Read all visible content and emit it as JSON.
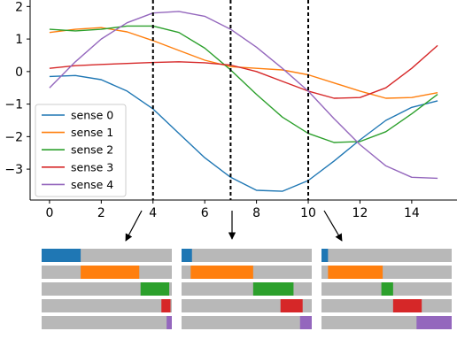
{
  "chart_data": {
    "type": "line",
    "xlim": [
      -0.75,
      15.75
    ],
    "ylim": [
      -3.95,
      2.2
    ],
    "x_ticks": [
      0,
      2,
      4,
      6,
      8,
      10,
      12,
      14
    ],
    "y_ticks": [
      2,
      1,
      0,
      -1,
      -2,
      -3
    ],
    "x_tick_labels": [
      "0",
      "2",
      "4",
      "6",
      "8",
      "10",
      "12",
      "14"
    ],
    "y_tick_labels": [
      "2",
      "1",
      "0",
      "−1",
      "−2",
      "−3"
    ],
    "x": [
      0,
      1,
      2,
      3,
      4,
      5,
      6,
      7,
      8,
      9,
      10,
      11,
      12,
      13,
      14,
      15
    ],
    "series": [
      {
        "name": "sense 0",
        "color": "#1f77b4",
        "values": [
          -0.15,
          -0.12,
          -0.25,
          -0.6,
          -1.15,
          -1.9,
          -2.65,
          -3.25,
          -3.65,
          -3.68,
          -3.35,
          -2.75,
          -2.1,
          -1.5,
          -1.1,
          -0.9
        ]
      },
      {
        "name": "sense 1",
        "color": "#ff7f0e",
        "values": [
          1.2,
          1.3,
          1.35,
          1.22,
          0.95,
          0.65,
          0.35,
          0.15,
          0.1,
          0.05,
          -0.1,
          -0.35,
          -0.6,
          -0.82,
          -0.8,
          -0.65
        ]
      },
      {
        "name": "sense 2",
        "color": "#2ca02c",
        "values": [
          1.3,
          1.25,
          1.3,
          1.4,
          1.4,
          1.2,
          0.72,
          0.05,
          -0.7,
          -1.4,
          -1.9,
          -2.18,
          -2.15,
          -1.85,
          -1.3,
          -0.7
        ]
      },
      {
        "name": "sense 3",
        "color": "#d62728",
        "values": [
          0.1,
          0.18,
          0.22,
          0.25,
          0.28,
          0.3,
          0.27,
          0.2,
          0.0,
          -0.3,
          -0.6,
          -0.82,
          -0.8,
          -0.5,
          0.1,
          0.8
        ]
      },
      {
        "name": "sense 4",
        "color": "#9467bd",
        "values": [
          -0.5,
          0.3,
          1.0,
          1.5,
          1.8,
          1.85,
          1.7,
          1.3,
          0.75,
          0.1,
          -0.6,
          -1.45,
          -2.25,
          -2.9,
          -3.25,
          -3.28
        ]
      }
    ],
    "markers_at_x": [
      4,
      7,
      10
    ],
    "legend": "lower-left",
    "grid": false,
    "sense_weights": [
      {
        "x": 4,
        "fractions": [
          0.3,
          0.45,
          0.22,
          0.07,
          0.04
        ]
      },
      {
        "x": 7,
        "fractions": [
          0.08,
          0.48,
          0.31,
          0.17,
          0.09
        ]
      },
      {
        "x": 10,
        "fractions": [
          0.05,
          0.42,
          0.09,
          0.22,
          0.27
        ]
      }
    ]
  }
}
